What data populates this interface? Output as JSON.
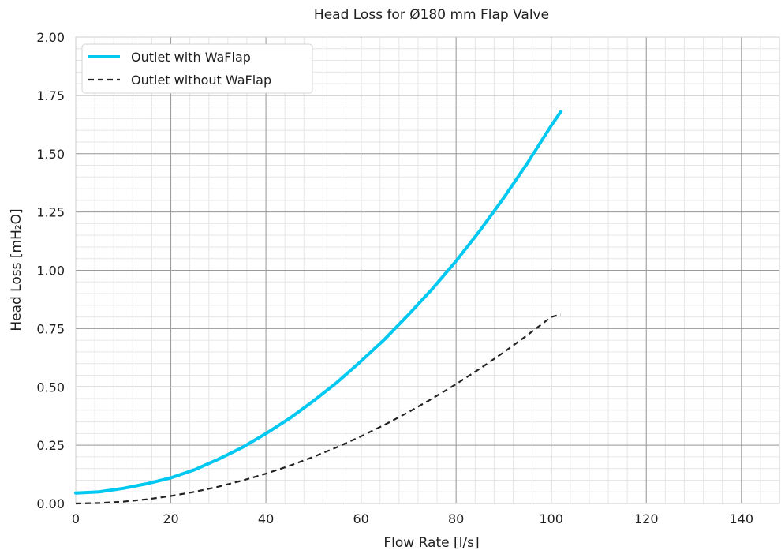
{
  "chart_data": {
    "type": "line",
    "title": "Head Loss for Ø180 mm Flap Valve",
    "xlabel": "Flow Rate [l/s]",
    "ylabel": "Head Loss [mH₂O]",
    "xlim": [
      0,
      148
    ],
    "ylim": [
      0,
      2.0
    ],
    "x_ticks": [
      0,
      20,
      40,
      60,
      80,
      100,
      120,
      140
    ],
    "y_ticks": [
      0.0,
      0.25,
      0.5,
      0.75,
      1.0,
      1.25,
      1.5,
      1.75,
      2.0
    ],
    "x_tick_labels": [
      "0",
      "20",
      "40",
      "60",
      "80",
      "100",
      "120",
      "140"
    ],
    "y_tick_labels": [
      "0.00",
      "0.25",
      "0.50",
      "0.75",
      "1.00",
      "1.25",
      "1.50",
      "1.75",
      "2.00"
    ],
    "grid": true,
    "legend_position": "top-left",
    "series": [
      {
        "name": "Outlet with WaFlap",
        "color": "#00c8f0",
        "style": "solid",
        "x": [
          0,
          5,
          10,
          15,
          20,
          25,
          30,
          35,
          40,
          45,
          50,
          55,
          60,
          65,
          70,
          75,
          80,
          85,
          90,
          95,
          100,
          102
        ],
        "y": [
          0.045,
          0.05,
          0.065,
          0.085,
          0.11,
          0.145,
          0.19,
          0.24,
          0.3,
          0.365,
          0.44,
          0.52,
          0.61,
          0.705,
          0.81,
          0.92,
          1.04,
          1.17,
          1.31,
          1.46,
          1.62,
          1.68
        ]
      },
      {
        "name": "Outlet without WaFlap",
        "color": "#222222",
        "style": "dashed",
        "x": [
          0,
          5,
          10,
          15,
          20,
          25,
          30,
          35,
          40,
          45,
          50,
          55,
          60,
          65,
          70,
          75,
          80,
          85,
          90,
          95,
          100,
          102
        ],
        "y": [
          0.0,
          0.002,
          0.008,
          0.018,
          0.032,
          0.05,
          0.072,
          0.098,
          0.128,
          0.162,
          0.2,
          0.242,
          0.288,
          0.338,
          0.392,
          0.45,
          0.512,
          0.578,
          0.648,
          0.722,
          0.8,
          0.81
        ]
      }
    ]
  }
}
